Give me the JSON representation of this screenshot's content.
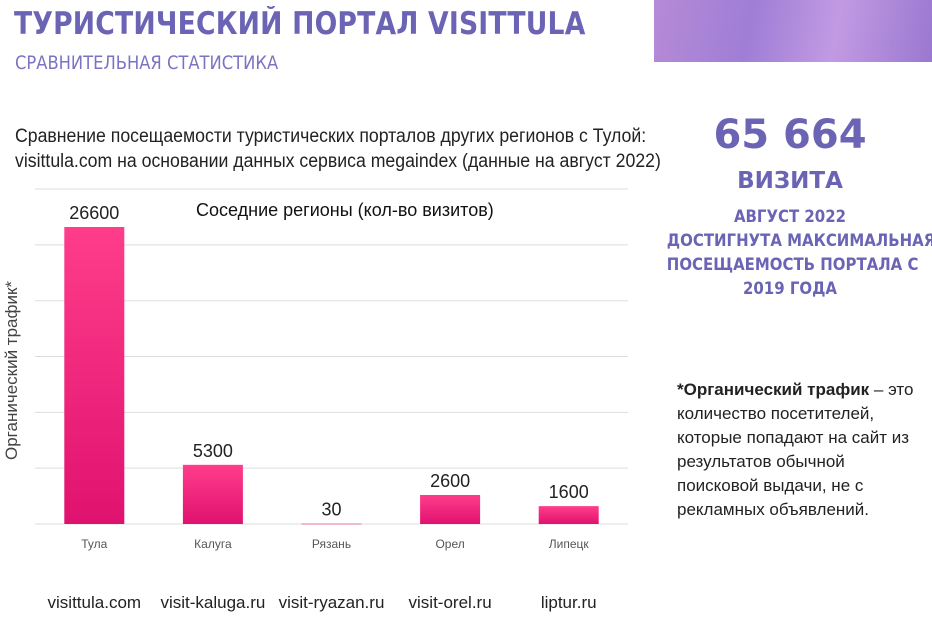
{
  "header": {
    "title": "ТУРИСТИЧЕСКИЙ ПОРТАЛ VISITTULA",
    "subtitle": "СРАВНИТЕЛЬНАЯ СТАТИСТИКА"
  },
  "intro": {
    "line1": "Сравнение посещаемости туристических порталов других регионов с Тулой:",
    "line2": "visittula.com на основании данных сервиса megaindex (данные на август 2022)"
  },
  "stat": {
    "value": "65 664",
    "unit": "ВИЗИТА",
    "desc": [
      "АВГУСТ 2022",
      "ДОСТИГНУТА МАКСИМАЛЬНАЯ",
      "ПОСЕЩАЕМОСТЬ ПОРТАЛА С",
      "2019 ГОДА"
    ]
  },
  "note": {
    "term": "*Органический трафик",
    "text": " – это количество посетителей, которые попадают на сайт  из результатов обычной поисковой выдачи,  не с рекламных объявлений."
  },
  "colors": {
    "accent": "#6b64b4",
    "bar_top": "#ff3d8b",
    "bar_bottom": "#e0126f"
  },
  "chart_data": {
    "type": "bar",
    "title": "Соседние регионы (кол-во визитов)",
    "ylabel": "Органический трафик*",
    "categories": [
      "Тула",
      "Калуга",
      "Рязань",
      "Орел",
      "Липецк"
    ],
    "values": [
      26600,
      5300,
      30,
      2600,
      1600
    ],
    "value_labels": [
      "26600",
      "5300",
      "30",
      "2600",
      "1600"
    ],
    "ylim": [
      0,
      30000
    ],
    "grid": true,
    "legend": "none"
  },
  "sites": [
    "visittula.com",
    "visit-kaluga.ru",
    "visit-ryazan.ru",
    "visit-orel.ru",
    "liptur.ru"
  ]
}
